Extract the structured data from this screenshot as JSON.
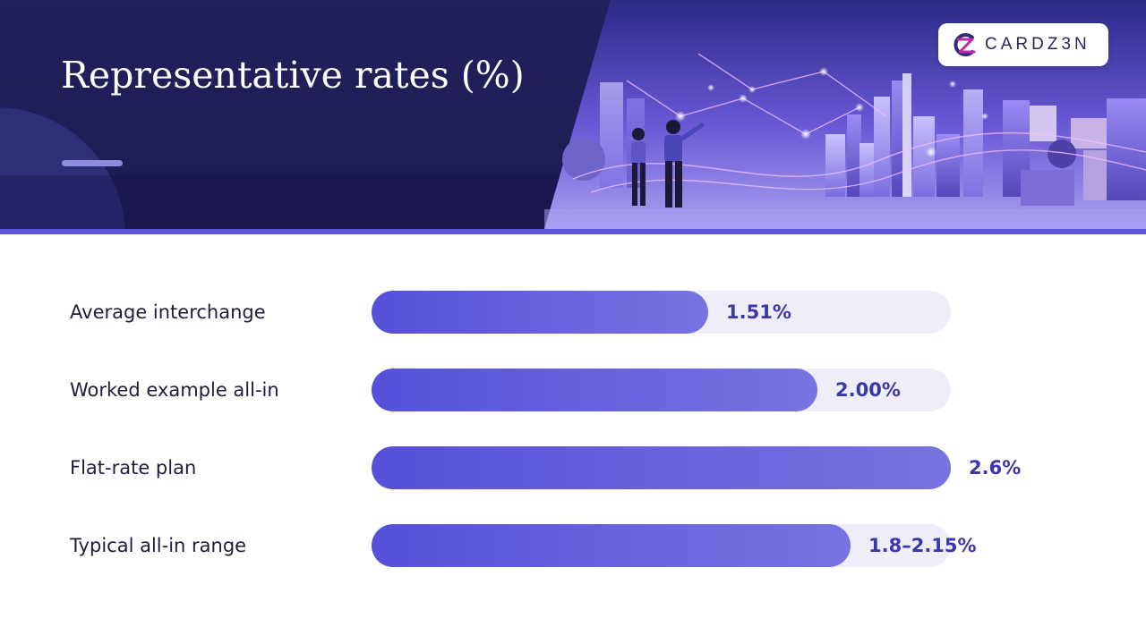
{
  "header": {
    "brand": "CARDZ3N",
    "colors": {
      "background": "#23215c",
      "accent": "#5a55d9",
      "bar": "#5650da"
    },
    "illustration": "two people viewing a glowing futuristic city skyline"
  },
  "chart_data": {
    "type": "bar",
    "orientation": "horizontal",
    "title": "Representative rates (%)",
    "xlim": [
      0,
      2.6
    ],
    "grid": false,
    "categories": [
      "Average interchange",
      "Worked example all-in",
      "Flat-rate plan",
      "Typical all-in range"
    ],
    "values": [
      1.51,
      2.0,
      2.6,
      2.15
    ],
    "value_labels": [
      "1.51%",
      "2.00%",
      "2.6%",
      "1.8–2.15%"
    ]
  }
}
